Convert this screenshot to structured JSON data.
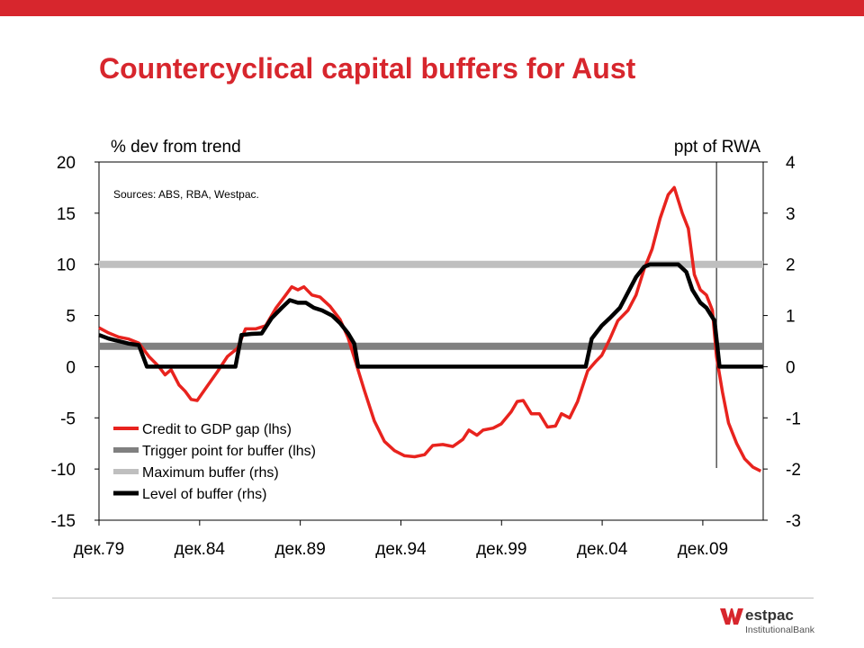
{
  "header": {
    "title": "Countercyclical capital buffers for Aust"
  },
  "colors": {
    "brand": "#d7262d",
    "credit": "#e8231e",
    "trigger": "#808080",
    "maxbuf": "#bfbfbf",
    "level": "#000000"
  },
  "brand": {
    "word": "estpac",
    "sub": "InstitutionalBank",
    "icon": "westpac-w-logo"
  },
  "chart_data": {
    "type": "line",
    "title": "",
    "source": "Sources: ABS, RBA, Westpac.",
    "ylabel_left": "% dev from trend",
    "ylabel_right": "ppt of RWA",
    "ylim_left": [
      -15,
      20
    ],
    "ylim_right": [
      -3,
      4
    ],
    "yticks_left": [
      20,
      15,
      10,
      5,
      0,
      -5,
      -10,
      -15
    ],
    "yticks_right": [
      4,
      3,
      2,
      1,
      0,
      -1,
      -2,
      -3
    ],
    "x_ticks": [
      "дек.79",
      "дек.84",
      "дек.89",
      "дек.94",
      "дек.99",
      "дек.04",
      "дек.09"
    ],
    "x_tick_values": [
      1979.92,
      1984.92,
      1989.92,
      1994.92,
      1999.92,
      2004.92,
      2009.92
    ],
    "xlim": [
      1979.92,
      2012.92
    ],
    "vertical_marker_x": 2010.6,
    "legend_position": "bottom-left",
    "series": [
      {
        "name": "Credit to GDP gap (lhs)",
        "axis": "left",
        "points": [
          [
            1979.92,
            3.8
          ],
          [
            1980.4,
            3.3
          ],
          [
            1980.9,
            2.9
          ],
          [
            1981.4,
            2.7
          ],
          [
            1981.9,
            2.3
          ],
          [
            1982.4,
            1.0
          ],
          [
            1982.9,
            0.0
          ],
          [
            1983.2,
            -0.8
          ],
          [
            1983.5,
            -0.3
          ],
          [
            1983.9,
            -1.8
          ],
          [
            1984.2,
            -2.4
          ],
          [
            1984.5,
            -3.2
          ],
          [
            1984.8,
            -3.3
          ],
          [
            1985.3,
            -1.9
          ],
          [
            1985.8,
            -0.5
          ],
          [
            1986.3,
            1.0
          ],
          [
            1986.8,
            1.8
          ],
          [
            1987.2,
            3.7
          ],
          [
            1987.7,
            3.7
          ],
          [
            1988.2,
            4.0
          ],
          [
            1988.7,
            5.7
          ],
          [
            1989.2,
            7.0
          ],
          [
            1989.5,
            7.8
          ],
          [
            1989.8,
            7.5
          ],
          [
            1990.1,
            7.8
          ],
          [
            1990.5,
            7.0
          ],
          [
            1990.9,
            6.8
          ],
          [
            1991.4,
            5.9
          ],
          [
            1991.9,
            4.6
          ],
          [
            1992.3,
            2.8
          ],
          [
            1992.6,
            0.9
          ],
          [
            1993.1,
            -2.3
          ],
          [
            1993.6,
            -5.3
          ],
          [
            1994.1,
            -7.3
          ],
          [
            1994.6,
            -8.2
          ],
          [
            1995.1,
            -8.7
          ],
          [
            1995.6,
            -8.8
          ],
          [
            1996.1,
            -8.6
          ],
          [
            1996.5,
            -7.7
          ],
          [
            1997.0,
            -7.6
          ],
          [
            1997.5,
            -7.8
          ],
          [
            1998.0,
            -7.1
          ],
          [
            1998.3,
            -6.2
          ],
          [
            1998.7,
            -6.7
          ],
          [
            1999.0,
            -6.2
          ],
          [
            1999.5,
            -6.0
          ],
          [
            1999.9,
            -5.6
          ],
          [
            2000.4,
            -4.4
          ],
          [
            2000.7,
            -3.4
          ],
          [
            2001.0,
            -3.3
          ],
          [
            2001.4,
            -4.6
          ],
          [
            2001.8,
            -4.6
          ],
          [
            2002.2,
            -5.9
          ],
          [
            2002.6,
            -5.8
          ],
          [
            2002.9,
            -4.6
          ],
          [
            2003.3,
            -5.0
          ],
          [
            2003.7,
            -3.4
          ],
          [
            2004.2,
            -0.4
          ],
          [
            2004.6,
            0.5
          ],
          [
            2004.9,
            1.1
          ],
          [
            2005.3,
            2.7
          ],
          [
            2005.7,
            4.5
          ],
          [
            2006.2,
            5.5
          ],
          [
            2006.6,
            7.0
          ],
          [
            2007.0,
            9.5
          ],
          [
            2007.4,
            11.5
          ],
          [
            2007.8,
            14.5
          ],
          [
            2008.2,
            16.8
          ],
          [
            2008.5,
            17.5
          ],
          [
            2008.9,
            15.0
          ],
          [
            2009.2,
            13.5
          ],
          [
            2009.5,
            9.0
          ],
          [
            2009.8,
            7.5
          ],
          [
            2010.1,
            7.0
          ],
          [
            2010.4,
            5.5
          ],
          [
            2010.6,
            1.0
          ],
          [
            2010.9,
            -2.5
          ],
          [
            2011.2,
            -5.5
          ],
          [
            2011.6,
            -7.5
          ],
          [
            2012.0,
            -9.0
          ],
          [
            2012.4,
            -9.8
          ],
          [
            2012.8,
            -10.2
          ]
        ]
      },
      {
        "name": "Trigger point for buffer (lhs)",
        "axis": "left",
        "points": [
          [
            1979.92,
            2
          ],
          [
            2012.92,
            2
          ]
        ]
      },
      {
        "name": "Maximum buffer (rhs)",
        "axis": "right",
        "points": [
          [
            1979.92,
            2
          ],
          [
            2012.92,
            2
          ]
        ]
      },
      {
        "name": "Level of buffer (rhs)",
        "axis": "right",
        "points": [
          [
            1979.92,
            0.62
          ],
          [
            1980.4,
            0.55
          ],
          [
            1980.9,
            0.5
          ],
          [
            1981.4,
            0.45
          ],
          [
            1981.9,
            0.42
          ],
          [
            1982.3,
            0
          ],
          [
            1986.7,
            0
          ],
          [
            1987.0,
            0.62
          ],
          [
            1987.5,
            0.64
          ],
          [
            1988.0,
            0.65
          ],
          [
            1988.5,
            0.95
          ],
          [
            1989.0,
            1.15
          ],
          [
            1989.4,
            1.3
          ],
          [
            1989.8,
            1.25
          ],
          [
            1990.2,
            1.25
          ],
          [
            1990.6,
            1.15
          ],
          [
            1991.0,
            1.1
          ],
          [
            1991.5,
            1.0
          ],
          [
            1991.9,
            0.85
          ],
          [
            1992.3,
            0.65
          ],
          [
            1992.6,
            0.45
          ],
          [
            1992.8,
            0
          ],
          [
            2004.1,
            0
          ],
          [
            2004.4,
            0.55
          ],
          [
            2004.9,
            0.8
          ],
          [
            2005.3,
            0.95
          ],
          [
            2005.8,
            1.15
          ],
          [
            2006.2,
            1.45
          ],
          [
            2006.6,
            1.75
          ],
          [
            2007.0,
            1.95
          ],
          [
            2007.3,
            2.0
          ],
          [
            2008.0,
            2.0
          ],
          [
            2008.7,
            2.0
          ],
          [
            2009.1,
            1.85
          ],
          [
            2009.4,
            1.5
          ],
          [
            2009.8,
            1.25
          ],
          [
            2010.1,
            1.15
          ],
          [
            2010.5,
            0.9
          ],
          [
            2010.75,
            0
          ],
          [
            2012.92,
            0
          ]
        ]
      }
    ]
  }
}
